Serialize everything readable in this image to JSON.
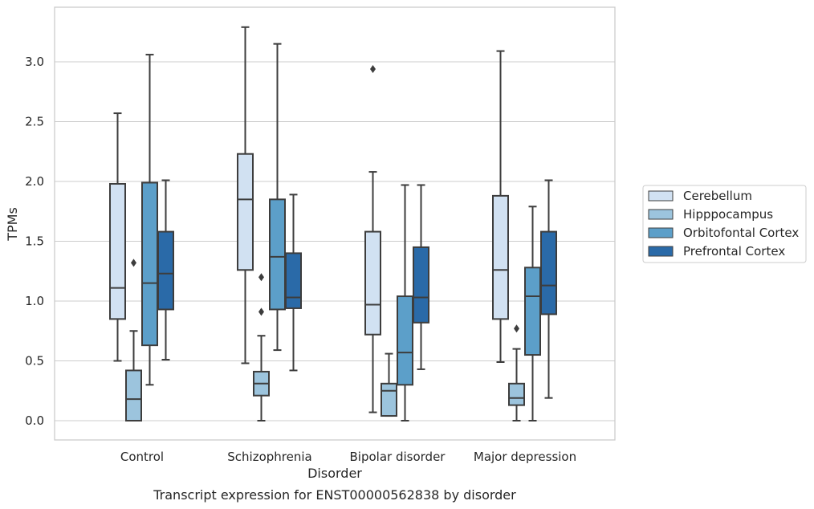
{
  "chart_data": {
    "type": "box",
    "xlabel": "Disorder",
    "ylabel": "TPMs",
    "caption": "Transcript expression for ENST00000562838 by disorder",
    "ylim": [
      -0.16,
      3.48
    ],
    "yticks": [
      0.0,
      0.5,
      1.0,
      1.5,
      2.0,
      2.5,
      3.0
    ],
    "ytick_labels": [
      "0.0",
      "0.5",
      "1.0",
      "1.5",
      "2.0",
      "2.5",
      "3.0"
    ],
    "grid": "horizontal",
    "legend_position": "right",
    "categories": [
      "Control",
      "Schizophrenia",
      "Bipolar disorder",
      "Major depression"
    ],
    "series": [
      {
        "name": "Cerebellum",
        "color": "#d1e1f2",
        "boxes": [
          {
            "whisker_low": 0.5,
            "q1": 0.85,
            "median": 1.11,
            "q3": 1.98,
            "whisker_high": 2.57,
            "outliers": []
          },
          {
            "whisker_low": 0.48,
            "q1": 1.26,
            "median": 1.85,
            "q3": 2.23,
            "whisker_high": 3.29,
            "outliers": []
          },
          {
            "whisker_low": 0.07,
            "q1": 0.72,
            "median": 0.97,
            "q3": 1.58,
            "whisker_high": 2.08,
            "outliers": [
              2.94
            ]
          },
          {
            "whisker_low": 0.49,
            "q1": 0.85,
            "median": 1.26,
            "q3": 1.88,
            "whisker_high": 3.09,
            "outliers": []
          }
        ]
      },
      {
        "name": "Hipppocampus",
        "color": "#9cc4dd",
        "boxes": [
          {
            "whisker_low": 0.0,
            "q1": 0.0,
            "median": 0.18,
            "q3": 0.42,
            "whisker_high": 0.75,
            "outliers": [
              1.32
            ]
          },
          {
            "whisker_low": 0.0,
            "q1": 0.21,
            "median": 0.31,
            "q3": 0.41,
            "whisker_high": 0.71,
            "outliers": [
              0.91,
              1.2
            ]
          },
          {
            "whisker_low": 0.04,
            "q1": 0.04,
            "median": 0.25,
            "q3": 0.31,
            "whisker_high": 0.56,
            "outliers": []
          },
          {
            "whisker_low": 0.0,
            "q1": 0.13,
            "median": 0.19,
            "q3": 0.31,
            "whisker_high": 0.6,
            "outliers": [
              0.77
            ]
          }
        ]
      },
      {
        "name": "Orbitofontal Cortex",
        "color": "#5c9fc9",
        "boxes": [
          {
            "whisker_low": 0.3,
            "q1": 0.63,
            "median": 1.15,
            "q3": 1.99,
            "whisker_high": 3.06,
            "outliers": []
          },
          {
            "whisker_low": 0.59,
            "q1": 0.93,
            "median": 1.37,
            "q3": 1.85,
            "whisker_high": 3.15,
            "outliers": []
          },
          {
            "whisker_low": 0.0,
            "q1": 0.3,
            "median": 0.57,
            "q3": 1.04,
            "whisker_high": 1.97,
            "outliers": []
          },
          {
            "whisker_low": 0.0,
            "q1": 0.55,
            "median": 1.04,
            "q3": 1.28,
            "whisker_high": 1.79,
            "outliers": []
          }
        ]
      },
      {
        "name": "Prefrontal Cortex",
        "color": "#2a6aa8",
        "boxes": [
          {
            "whisker_low": 0.51,
            "q1": 0.93,
            "median": 1.23,
            "q3": 1.58,
            "whisker_high": 2.01,
            "outliers": []
          },
          {
            "whisker_low": 0.42,
            "q1": 0.94,
            "median": 1.03,
            "q3": 1.4,
            "whisker_high": 1.89,
            "outliers": []
          },
          {
            "whisker_low": 0.43,
            "q1": 0.82,
            "median": 1.03,
            "q3": 1.45,
            "whisker_high": 1.97,
            "outliers": []
          },
          {
            "whisker_low": 0.19,
            "q1": 0.89,
            "median": 1.13,
            "q3": 1.58,
            "whisker_high": 2.01,
            "outliers": []
          }
        ]
      }
    ]
  }
}
